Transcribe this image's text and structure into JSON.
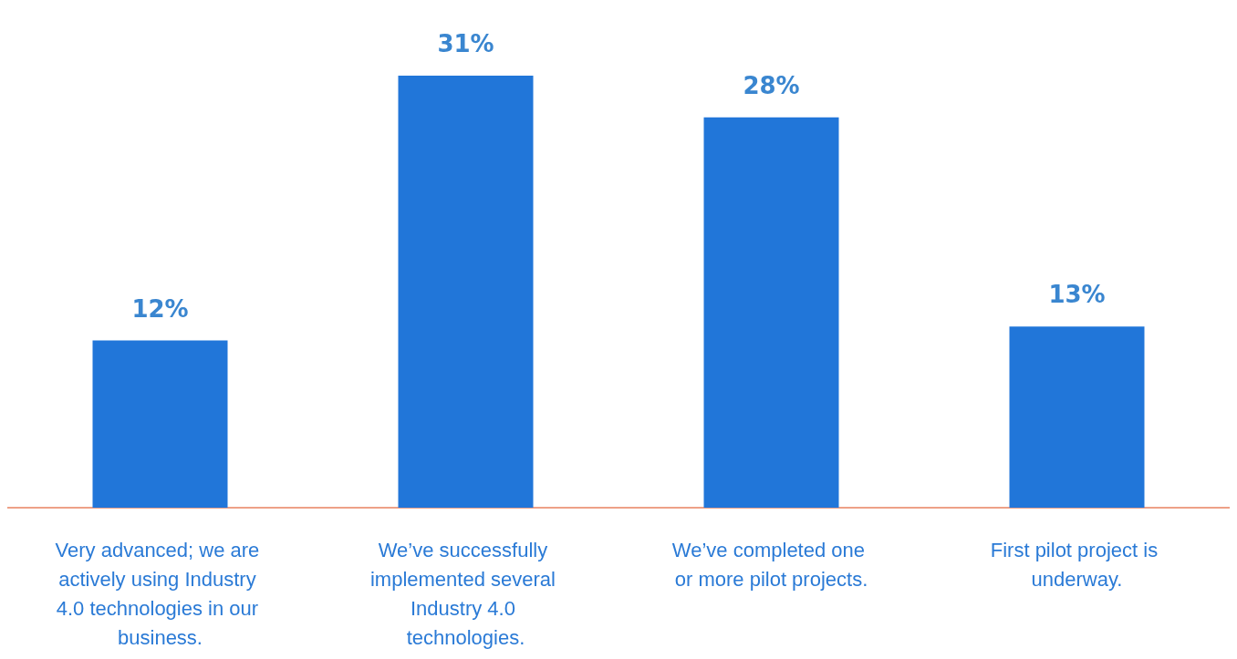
{
  "chart_data": {
    "type": "bar",
    "categories": [
      "Very advanced; we are actively using Industry 4.0 technologies in our business.",
      "We’ve successfully implemented several Industry 4.0 technologies.",
      "We’ve completed one or more pilot projects.",
      "First pilot project is underway."
    ],
    "values": [
      12,
      31,
      28,
      13
    ],
    "value_labels": [
      "12%",
      "31%",
      "28%",
      "13%"
    ],
    "color": "#2176d9",
    "grid": false
  }
}
